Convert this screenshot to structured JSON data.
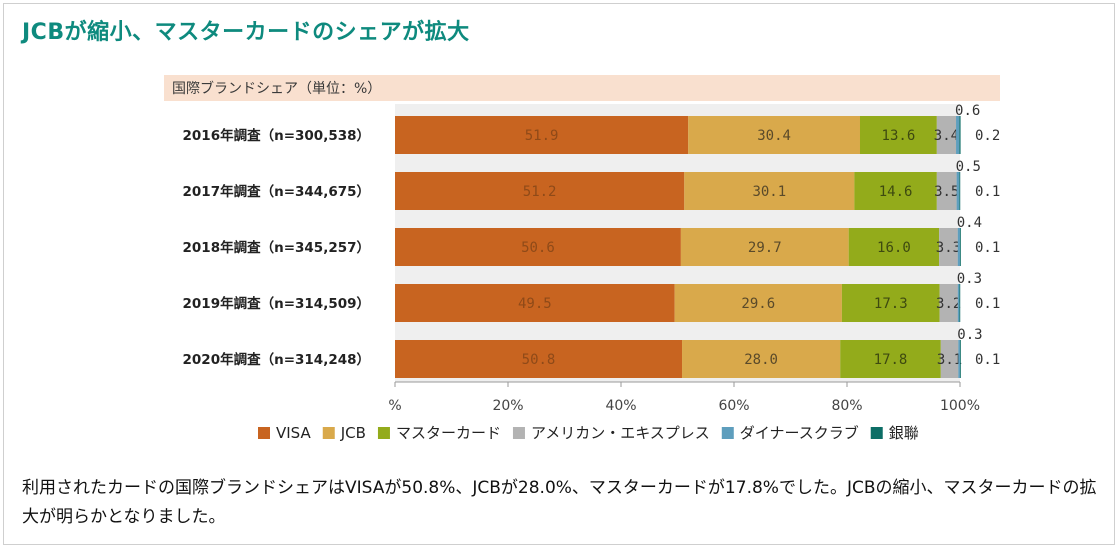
{
  "title": "JCBが縮小、マスターカードのシェアが拡大",
  "caption": "利用されたカードの国際ブランドシェアはVISAが50.8%、JCBが28.0%、マスターカードが17.8%でした。JCBの縮小、マスターカードの拡大が明らかとなりました。",
  "chart_data": {
    "type": "bar",
    "orientation": "horizontal",
    "stacked": true,
    "title": "国際ブランドシェア（単位：%）",
    "categories": [
      "2016年調査（n=300,538）",
      "2017年調査（n=344,675）",
      "2018年調査（n=345,257）",
      "2019年調査（n=314,509）",
      "2020年調査（n=314,248）"
    ],
    "series": [
      {
        "name": "VISA",
        "color": "#c86420",
        "label_color": "#8f4a18",
        "values": [
          51.9,
          51.2,
          50.6,
          49.5,
          50.8
        ]
      },
      {
        "name": "JCB",
        "color": "#d9a94b",
        "label_color": "#5a4a2a",
        "values": [
          30.4,
          30.1,
          29.7,
          29.6,
          28.0
        ]
      },
      {
        "name": "マスターカード",
        "color": "#93ab1b",
        "label_color": "#3e4a10",
        "values": [
          13.6,
          14.6,
          16.0,
          17.3,
          17.8
        ]
      },
      {
        "name": "アメリカン・エキスプレス",
        "color": "#b3b3b3",
        "label_color": "#333333",
        "values": [
          3.4,
          3.5,
          3.3,
          3.2,
          3.1
        ]
      },
      {
        "name": "ダイナースクラブ",
        "color": "#5e9ebd",
        "label_color": "#333333",
        "values": [
          0.6,
          0.5,
          0.4,
          0.3,
          0.3
        ]
      },
      {
        "name": "銀聯",
        "color": "#0d6e66",
        "label_color": "#333333",
        "values": [
          0.2,
          0.1,
          0.1,
          0.1,
          0.1
        ]
      }
    ],
    "x_ticks": [
      "%",
      "20%",
      "40%",
      "60%",
      "80%",
      "100%"
    ],
    "xlim": [
      0,
      100
    ],
    "legend_position": "bottom",
    "grid": false
  }
}
